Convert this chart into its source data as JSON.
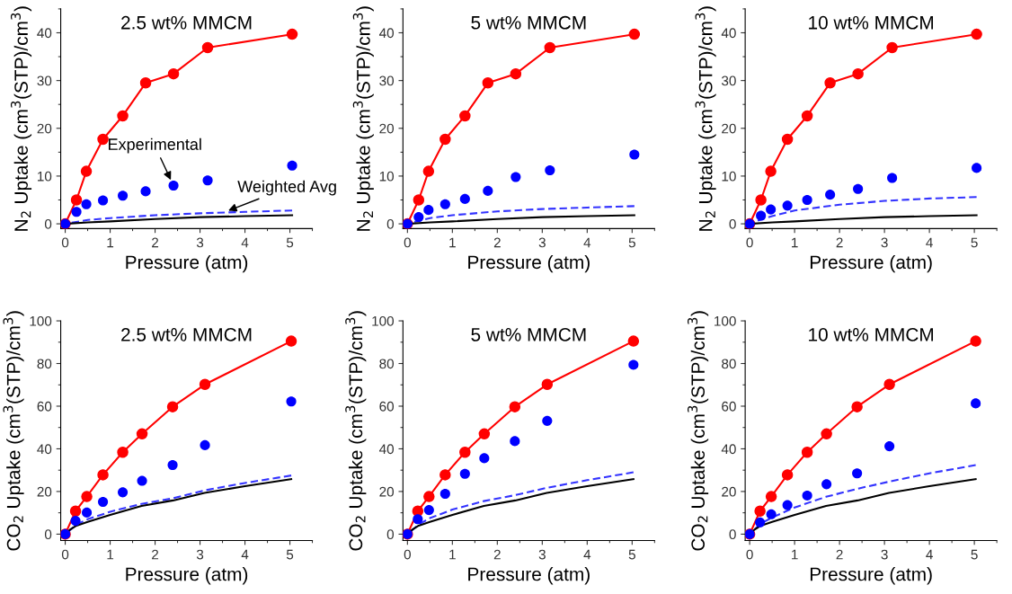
{
  "chart_data": [
    {
      "type": "line",
      "title": "2.5 wt% MMCM",
      "xlabel": "Pressure (atm)",
      "ylabel": "N$_{2}$ Uptake (cm$^{3}$(STP)/cm$^{3}$)",
      "xlim": [
        -0.1,
        5.5
      ],
      "xticks": [
        0,
        1,
        2,
        3,
        4,
        5
      ],
      "ylim": [
        -1,
        45
      ],
      "yticks": [
        0,
        10,
        20,
        30,
        40
      ],
      "grid": false,
      "legend": false,
      "annotations": [
        {
          "text": "Experimental",
          "x": 2.41,
          "y": 8.0
        },
        {
          "text": "Weighted Avg",
          "x": 3.5,
          "y": 2.3
        }
      ],
      "series": [
        {
          "marker": "circle",
          "line_style": "solid",
          "color": "#ff0000",
          "x": [
            0,
            0.25,
            0.47,
            0.84,
            1.28,
            1.79,
            2.41,
            3.17,
            5.05
          ],
          "values": [
            0,
            5,
            11,
            17.7,
            22.6,
            29.5,
            31.4,
            36.9,
            39.7
          ]
        },
        {
          "type": "scatter",
          "marker": "circle",
          "color": "#0000ff",
          "x": [
            0,
            0.25,
            0.47,
            0.84,
            1.28,
            1.79,
            2.41,
            3.17,
            5.05
          ],
          "values": [
            0,
            2.5,
            4.1,
            4.9,
            5.9,
            6.8,
            8.0,
            9.1,
            12.2
          ]
        },
        {
          "marker": "none",
          "line_style": "dashed",
          "color": "#3333ff",
          "x": [
            0,
            0.5,
            1,
            2,
            3,
            4,
            5.05
          ],
          "values": [
            0,
            0.8,
            1.2,
            1.8,
            2.2,
            2.5,
            2.8
          ]
        },
        {
          "marker": "none",
          "line_style": "solid",
          "color": "#000000",
          "x": [
            0,
            0.5,
            1,
            2,
            3,
            4,
            5.05
          ],
          "values": [
            0,
            0.3,
            0.5,
            1.0,
            1.4,
            1.6,
            1.8
          ]
        }
      ]
    },
    {
      "type": "line",
      "title": "5 wt% MMCM",
      "xlabel": "Pressure (atm)",
      "ylabel": "N$_{2}$ Uptake (cm$^{3}$(STP)/cm$^{3}$)",
      "xlim": [
        -0.1,
        5.5
      ],
      "xticks": [
        0,
        1,
        2,
        3,
        4,
        5
      ],
      "ylim": [
        -1,
        45
      ],
      "yticks": [
        0,
        10,
        20,
        30,
        40
      ],
      "grid": false,
      "legend": false,
      "series": [
        {
          "marker": "circle",
          "line_style": "solid",
          "color": "#ff0000",
          "x": [
            0,
            0.25,
            0.47,
            0.84,
            1.28,
            1.79,
            2.41,
            3.17,
            5.05
          ],
          "values": [
            0,
            5,
            11,
            17.7,
            22.6,
            29.5,
            31.4,
            36.9,
            39.7
          ]
        },
        {
          "type": "scatter",
          "marker": "circle",
          "color": "#0000ff",
          "x": [
            0,
            0.25,
            0.47,
            0.84,
            1.28,
            1.79,
            2.41,
            3.17,
            5.05
          ],
          "values": [
            0,
            1.4,
            2.9,
            4.1,
            5.2,
            6.9,
            9.8,
            11.2,
            14.5
          ]
        },
        {
          "marker": "none",
          "line_style": "dashed",
          "color": "#3333ff",
          "x": [
            0,
            0.5,
            1,
            2,
            3,
            4,
            5.05
          ],
          "values": [
            0,
            1.2,
            1.8,
            2.6,
            3.1,
            3.4,
            3.7
          ]
        },
        {
          "marker": "none",
          "line_style": "solid",
          "color": "#000000",
          "x": [
            0,
            0.5,
            1,
            2,
            3,
            4,
            5.05
          ],
          "values": [
            0,
            0.3,
            0.5,
            1.0,
            1.4,
            1.6,
            1.8
          ]
        }
      ]
    },
    {
      "type": "line",
      "title": "10 wt% MMCM",
      "xlabel": "Pressure (atm)",
      "ylabel": "N$_{2}$ Uptake (cm$^{3}$(STP)/cm$^{3}$)",
      "xlim": [
        -0.1,
        5.5
      ],
      "xticks": [
        0,
        1,
        2,
        3,
        4,
        5
      ],
      "ylim": [
        -1,
        45
      ],
      "yticks": [
        0,
        10,
        20,
        30,
        40
      ],
      "grid": false,
      "legend": false,
      "series": [
        {
          "marker": "circle",
          "line_style": "solid",
          "color": "#ff0000",
          "x": [
            0,
            0.25,
            0.47,
            0.84,
            1.28,
            1.79,
            2.41,
            3.17,
            5.05
          ],
          "values": [
            0,
            5,
            11,
            17.7,
            22.6,
            29.5,
            31.4,
            36.9,
            39.7
          ]
        },
        {
          "type": "scatter",
          "marker": "circle",
          "color": "#0000ff",
          "x": [
            0,
            0.25,
            0.47,
            0.84,
            1.28,
            1.79,
            2.41,
            3.17,
            5.05
          ],
          "values": [
            0,
            1.7,
            3.0,
            3.8,
            5.0,
            6.1,
            7.3,
            9.6,
            11.7
          ]
        },
        {
          "marker": "none",
          "line_style": "dashed",
          "color": "#3333ff",
          "x": [
            0,
            0.25,
            0.5,
            1,
            2,
            3,
            4,
            5.05
          ],
          "values": [
            0,
            0.9,
            1.6,
            2.8,
            4.0,
            4.8,
            5.3,
            5.6
          ]
        },
        {
          "marker": "none",
          "line_style": "solid",
          "color": "#000000",
          "x": [
            0,
            0.5,
            1,
            2,
            3,
            4,
            5.05
          ],
          "values": [
            0,
            0.3,
            0.5,
            1.0,
            1.4,
            1.6,
            1.8
          ]
        }
      ]
    },
    {
      "type": "line",
      "title": "2.5 wt% MMCM",
      "xlabel": "Pressure (atm)",
      "ylabel": "CO$_{2}$ Uptake (cm$^{3}$(STP)/cm$^{3}$)",
      "xlim": [
        -0.1,
        5.5
      ],
      "xticks": [
        0,
        1,
        2,
        3,
        4,
        5
      ],
      "ylim": [
        -3,
        100
      ],
      "yticks": [
        0,
        20,
        40,
        60,
        80,
        100
      ],
      "grid": false,
      "legend": false,
      "series": [
        {
          "marker": "circle",
          "line_style": "solid",
          "color": "#ff0000",
          "x": [
            0,
            0.23,
            0.48,
            0.84,
            1.28,
            1.71,
            2.39,
            3.11,
            5.03
          ],
          "values": [
            0,
            10.8,
            17.6,
            27.8,
            38.4,
            47,
            59.7,
            70.2,
            90.5
          ]
        },
        {
          "type": "scatter",
          "marker": "circle",
          "color": "#0000ff",
          "x": [
            0,
            0.23,
            0.48,
            0.84,
            1.28,
            1.71,
            2.39,
            3.11,
            5.03
          ],
          "values": [
            0,
            6.2,
            10.1,
            15.1,
            19.6,
            25,
            32.4,
            41.7,
            62.2
          ]
        },
        {
          "marker": "none",
          "line_style": "dashed",
          "color": "#3333ff",
          "x": [
            0,
            0.25,
            0.5,
            1,
            1.7,
            2.4,
            3.1,
            4,
            5.03
          ],
          "values": [
            0,
            4.5,
            7,
            10.5,
            14.2,
            16.8,
            20.5,
            24,
            27.5
          ]
        },
        {
          "marker": "none",
          "line_style": "solid",
          "color": "#000000",
          "x": [
            0,
            0.1,
            0.25,
            0.5,
            1,
            1.7,
            2.4,
            3.1,
            4,
            5.03
          ],
          "values": [
            0,
            2,
            4,
            5.7,
            9,
            13.2,
            15.8,
            19.3,
            22.5,
            25.8
          ]
        }
      ]
    },
    {
      "type": "line",
      "title": "5 wt% MMCM",
      "xlabel": "Pressure (atm)",
      "ylabel": "CO$_{2}$ Uptake (cm$^{3}$(STP)/cm$^{3}$)",
      "xlim": [
        -0.1,
        5.5
      ],
      "xticks": [
        0,
        1,
        2,
        3,
        4,
        5
      ],
      "ylim": [
        -3,
        100
      ],
      "yticks": [
        0,
        20,
        40,
        60,
        80,
        100
      ],
      "grid": false,
      "legend": false,
      "series": [
        {
          "marker": "circle",
          "line_style": "solid",
          "color": "#ff0000",
          "x": [
            0,
            0.23,
            0.48,
            0.84,
            1.28,
            1.71,
            2.39,
            3.11,
            5.03
          ],
          "values": [
            0,
            10.8,
            17.6,
            27.8,
            38.4,
            47,
            59.7,
            70.2,
            90.5
          ]
        },
        {
          "type": "scatter",
          "marker": "circle",
          "color": "#0000ff",
          "x": [
            0,
            0.23,
            0.48,
            0.84,
            1.28,
            1.71,
            2.39,
            3.11,
            5.03
          ],
          "values": [
            0,
            7,
            11.3,
            18.9,
            28.3,
            35.6,
            43.6,
            53.1,
            79.4
          ]
        },
        {
          "marker": "none",
          "line_style": "dashed",
          "color": "#3333ff",
          "x": [
            0,
            0.25,
            0.5,
            1,
            1.7,
            2.4,
            3.1,
            4,
            5.03
          ],
          "values": [
            0,
            4.5,
            7.5,
            11.5,
            15.5,
            18.3,
            21.7,
            25.3,
            29
          ]
        },
        {
          "marker": "none",
          "line_style": "solid",
          "color": "#000000",
          "x": [
            0,
            0.1,
            0.25,
            0.5,
            1,
            1.7,
            2.4,
            3.1,
            4,
            5.03
          ],
          "values": [
            0,
            2,
            4,
            5.7,
            9,
            13.2,
            15.8,
            19.3,
            22.5,
            25.8
          ]
        }
      ]
    },
    {
      "type": "line",
      "title": "10 wt% MMCM",
      "xlabel": "Pressure (atm)",
      "ylabel": "CO$_{2}$ Uptake (cm$^{3}$(STP)/cm$^{3}$)",
      "xlim": [
        -0.1,
        5.5
      ],
      "xticks": [
        0,
        1,
        2,
        3,
        4,
        5
      ],
      "ylim": [
        -3,
        100
      ],
      "yticks": [
        0,
        20,
        40,
        60,
        80,
        100
      ],
      "grid": false,
      "legend": false,
      "series": [
        {
          "marker": "circle",
          "line_style": "solid",
          "color": "#ff0000",
          "x": [
            0,
            0.23,
            0.48,
            0.84,
            1.28,
            1.71,
            2.39,
            3.11,
            5.03
          ],
          "values": [
            0,
            10.8,
            17.6,
            27.8,
            38.4,
            47,
            59.7,
            70.2,
            90.5
          ]
        },
        {
          "type": "scatter",
          "marker": "circle",
          "color": "#0000ff",
          "x": [
            0,
            0.23,
            0.48,
            0.84,
            1.28,
            1.71,
            2.39,
            3.11,
            5.03
          ],
          "values": [
            0,
            5.5,
            9.3,
            13.6,
            18.1,
            23.4,
            28.5,
            41.2,
            61.3
          ]
        },
        {
          "marker": "none",
          "line_style": "dashed",
          "color": "#3333ff",
          "x": [
            0,
            0.25,
            0.5,
            1,
            1.7,
            2.4,
            3.1,
            4,
            5.03
          ],
          "values": [
            0,
            5,
            7.8,
            12.5,
            17.5,
            21.3,
            24.6,
            28.5,
            32.4
          ]
        },
        {
          "marker": "none",
          "line_style": "solid",
          "color": "#000000",
          "x": [
            0,
            0.1,
            0.25,
            0.5,
            1,
            1.7,
            2.4,
            3.1,
            4,
            5.03
          ],
          "values": [
            0,
            2,
            4,
            5.7,
            9,
            13.2,
            15.8,
            19.3,
            22.5,
            25.8
          ]
        }
      ]
    }
  ]
}
